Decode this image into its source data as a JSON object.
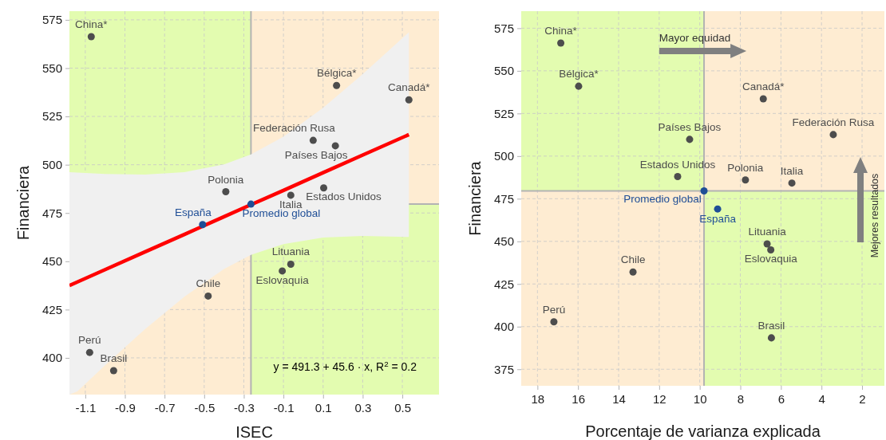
{
  "chart_data": [
    {
      "type": "scatter",
      "xlabel": "ISEC",
      "ylabel": "Financiera",
      "xlim": [
        -1.18,
        0.685
      ],
      "ylim": [
        381,
        579.5
      ],
      "xticks": [
        -1.1,
        -0.9,
        -0.7,
        -0.5,
        -0.3,
        -0.1,
        0.1,
        0.3,
        0.5
      ],
      "yticks": [
        400,
        425,
        450,
        475,
        500,
        525,
        550,
        575
      ],
      "grid": true,
      "series": [
        {
          "type": "scatter",
          "marker": "circle",
          "color": "#4d4d4d",
          "x": [
            -1.07,
            0.168,
            0.533,
            0.05,
            0.162,
            -0.391,
            -0.063,
            0.103,
            -0.063,
            -0.106,
            -0.48,
            -1.078,
            -0.957
          ],
          "values": [
            566.3,
            541,
            533.6,
            512.6,
            509.8,
            486,
            484.2,
            488,
            448.5,
            445,
            432,
            402.8,
            393.4
          ]
        },
        {
          "type": "scatter",
          "marker": "circle",
          "color": "#1f4e96",
          "x": [
            -0.508,
            -0.264
          ],
          "values": [
            469,
            479.6
          ]
        },
        {
          "type": "line",
          "color": "#ff0000",
          "x": [
            -1.18,
            -1.14,
            -1.0,
            -0.8,
            -0.6,
            -0.4,
            -0.264,
            -0.1,
            0.1,
            0.3,
            0.533
          ],
          "values": [
            437.5,
            439.3,
            445.7,
            454.8,
            463.9,
            473.1,
            479.3,
            486.7,
            495.9,
            505.0,
            515.6
          ],
          "lower": [
            381,
            382.7,
            396.2,
            414.7,
            431.7,
            446.0,
            453.3,
            458.9,
            462.3,
            463.1,
            462.6
          ],
          "upper": [
            496.1,
            495.9,
            495.2,
            494.9,
            496.1,
            500.2,
            505.3,
            514.5,
            529.5,
            546.9,
            568.6
          ]
        }
      ],
      "ref_lines": [
        {
          "axis": "x",
          "value": -0.264,
          "color": "#b3b3b3"
        },
        {
          "axis": "y",
          "value": 479.6,
          "color": "#b3b3b3"
        }
      ],
      "annotations": [
        {
          "text": "China*",
          "x": -1.07,
          "y": 566.3
        },
        {
          "text": "Bélgica*",
          "x": 0.168,
          "y": 541
        },
        {
          "text": "Canadá*",
          "x": 0.533,
          "y": 533.6
        },
        {
          "text": "Federación Rusa",
          "x": 0.05,
          "y": 512.6
        },
        {
          "text": "Países Bajos",
          "x": 0.162,
          "y": 509.8
        },
        {
          "text": "Polonia",
          "x": -0.391,
          "y": 486
        },
        {
          "text": "Italia",
          "x": -0.063,
          "y": 484.2
        },
        {
          "text": "Estados Unidos",
          "x": 0.103,
          "y": 488
        },
        {
          "text": "España",
          "x": -0.508,
          "y": 469
        },
        {
          "text": "Promedio global",
          "x": -0.264,
          "y": 479.6
        },
        {
          "text": "Lituania",
          "x": -0.063,
          "y": 448.5
        },
        {
          "text": "Eslovaquia",
          "x": -0.106,
          "y": 445
        },
        {
          "text": "Chile",
          "x": -0.48,
          "y": 432
        },
        {
          "text": "Perú",
          "x": -1.078,
          "y": 402.8
        },
        {
          "text": "Brasil",
          "x": -0.957,
          "y": 393.4
        },
        "y = 491.3 + 45.6 · x,  R$^{2}$ = 0.2"
      ]
    },
    {
      "type": "scatter",
      "xlabel": "Porcentaje de varianza explicada",
      "ylabel": "Financiera",
      "xlim": [
        18.8,
        0.9
      ],
      "ylim": [
        365.3,
        585
      ],
      "xticks": [
        18,
        16,
        14,
        12,
        10,
        8,
        6,
        4,
        2
      ],
      "yticks": [
        375,
        400,
        425,
        450,
        475,
        500,
        525,
        550,
        575
      ],
      "grid": true,
      "series": [
        {
          "type": "scatter",
          "marker": "circle",
          "color": "#4d4d4d",
          "x": [
            16.85,
            15.97,
            6.87,
            10.5,
            3.42,
            11.09,
            7.75,
            5.46,
            6.68,
            6.5,
            13.29,
            17.19,
            6.47
          ],
          "values": [
            566.3,
            541,
            533.6,
            509.8,
            512.6,
            488,
            486,
            484.2,
            448.5,
            445,
            432,
            402.8,
            393.4
          ]
        },
        {
          "type": "scatter",
          "marker": "circle",
          "color": "#1f4e96",
          "x": [
            9.79,
            9.12
          ],
          "values": [
            479.6,
            469
          ]
        }
      ],
      "ref_lines": [
        {
          "axis": "x",
          "value": 9.79,
          "color": "#b3b3b3"
        },
        {
          "axis": "y",
          "value": 479.6,
          "color": "#b3b3b3"
        }
      ],
      "annotations": [
        {
          "text": "China*",
          "x": 16.85,
          "y": 566.3
        },
        {
          "text": "Bélgica*",
          "x": 15.97,
          "y": 541
        },
        {
          "text": "Canadá*",
          "x": 6.87,
          "y": 533.6
        },
        {
          "text": "Países Bajos",
          "x": 10.5,
          "y": 509.8
        },
        {
          "text": "Federación Rusa",
          "x": 3.42,
          "y": 512.6
        },
        {
          "text": "Estados Unidos",
          "x": 11.09,
          "y": 488
        },
        {
          "text": "Polonia",
          "x": 7.75,
          "y": 486
        },
        {
          "text": "Italia",
          "x": 5.46,
          "y": 484.2
        },
        {
          "text": "Promedio global",
          "x": 9.79,
          "y": 479.6
        },
        {
          "text": "España",
          "x": 9.12,
          "y": 469
        },
        {
          "text": "Lituania",
          "x": 6.68,
          "y": 448.5
        },
        {
          "text": "Eslovaquia",
          "x": 6.5,
          "y": 445
        },
        {
          "text": "Chile",
          "x": 13.29,
          "y": 432
        },
        {
          "text": "Perú",
          "x": 17.19,
          "y": 402.8
        },
        {
          "text": "Brasil",
          "x": 6.47,
          "y": 393.4
        },
        "Mayor equidad",
        "Mejores resultados"
      ]
    }
  ]
}
